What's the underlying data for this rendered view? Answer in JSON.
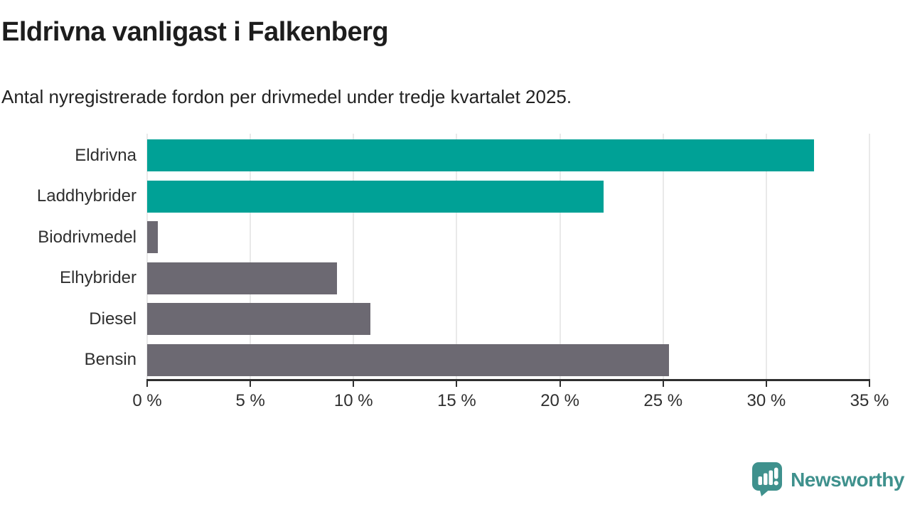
{
  "header": {
    "title": "Eldrivna vanligast i Falkenberg",
    "subtitle": "Antal nyregistrerade fordon per drivmedel under tredje kvartalet 2025."
  },
  "chart_data": {
    "type": "bar",
    "orientation": "horizontal",
    "title": "Eldrivna vanligast i Falkenberg",
    "subtitle": "Antal nyregistrerade fordon per drivmedel under tredje kvartalet 2025.",
    "categories": [
      "Eldrivna",
      "Laddhybrider",
      "Biodrivmedel",
      "Elhybrider",
      "Diesel",
      "Bensin"
    ],
    "values": [
      32.3,
      22.1,
      0.5,
      9.2,
      10.8,
      25.3
    ],
    "unit": "%",
    "bar_colors": [
      "#00a196",
      "#00a196",
      "#6c6972",
      "#6c6972",
      "#6c6972",
      "#6c6972"
    ],
    "highlight_color": "#00a196",
    "default_color": "#6c6972",
    "xlim": [
      0,
      35
    ],
    "x_ticks": [
      0,
      5,
      10,
      15,
      20,
      25,
      30,
      35
    ],
    "x_tick_labels": [
      "0 %",
      "5 %",
      "10 %",
      "15 %",
      "20 %",
      "25 %",
      "30 %",
      "35 %"
    ],
    "grid": true,
    "legend": false
  },
  "footer": {
    "brand": "Newsworthy",
    "brand_color": "#3f918d"
  }
}
